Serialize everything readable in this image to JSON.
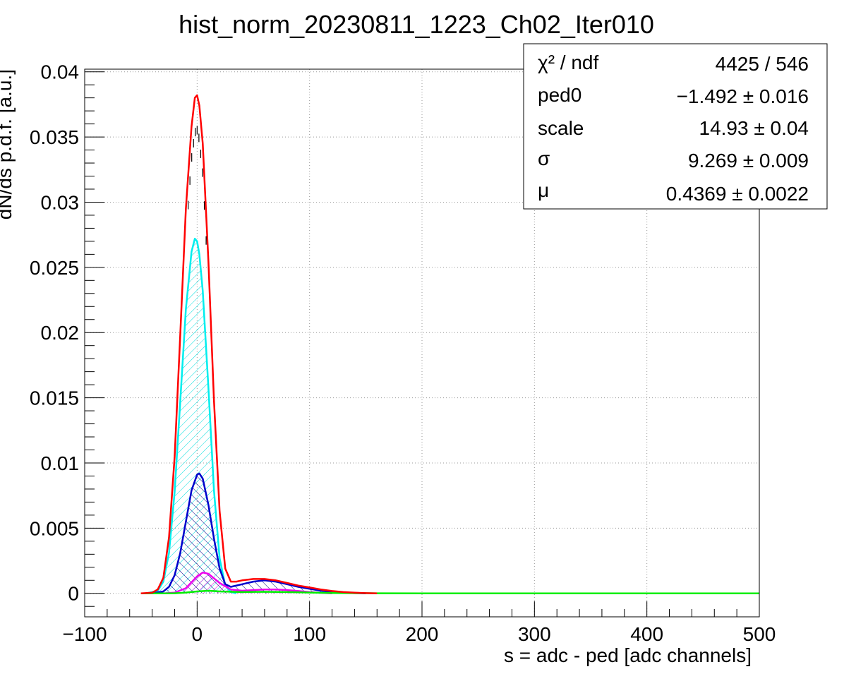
{
  "chart_data": {
    "type": "line",
    "title": "hist_norm_20230811_1223_Ch02_Iter010",
    "xlabel": "s = adc - ped [adc channels]",
    "ylabel": "dN/ds p.d.f. [a.u.]",
    "xlim": [
      -100,
      500
    ],
    "ylim": [
      -0.0018,
      0.0402
    ],
    "grid": true,
    "xticks": [
      -100,
      0,
      100,
      200,
      300,
      400,
      500
    ],
    "xtick_labels": [
      "−100",
      "0",
      "100",
      "200",
      "300",
      "400",
      "500"
    ],
    "yticks": [
      0,
      0.005,
      0.01,
      0.015,
      0.02,
      0.025,
      0.03,
      0.035,
      0.04
    ],
    "ytick_labels": [
      "0",
      "0.005",
      "0.01",
      "0.015",
      "0.02",
      "0.025",
      "0.03",
      "0.035",
      "0.04"
    ],
    "series": [
      {
        "color": "#ff0000",
        "x": [
          -50,
          -40,
          -35,
          -30,
          -25,
          -20,
          -15,
          -10,
          -5,
          -2,
          0,
          2,
          5,
          10,
          15,
          20,
          25,
          30,
          35,
          40,
          50,
          60,
          70,
          80,
          90,
          100,
          110,
          120,
          130,
          140,
          150,
          160
        ],
        "y": [
          0,
          5e-05,
          0.0003,
          0.0012,
          0.0043,
          0.0105,
          0.0198,
          0.0295,
          0.0358,
          0.038,
          0.0382,
          0.0374,
          0.0345,
          0.0255,
          0.0148,
          0.0063,
          0.0019,
          0.0009,
          0.0009,
          0.001,
          0.0011,
          0.0011,
          0.001,
          0.0008,
          0.0006,
          0.00045,
          0.0003,
          0.00018,
          0.0001,
          5e-05,
          2e-05,
          0
        ]
      },
      {
        "color": "#00eeee",
        "x": [
          -45,
          -35,
          -30,
          -25,
          -20,
          -15,
          -10,
          -5,
          -2,
          0,
          2,
          5,
          10,
          15,
          20,
          25,
          30,
          35
        ],
        "y": [
          0,
          0.0002,
          0.0009,
          0.0031,
          0.0078,
          0.0147,
          0.0218,
          0.0262,
          0.0272,
          0.027,
          0.026,
          0.0232,
          0.0158,
          0.0079,
          0.0027,
          0.0006,
          0.0001,
          0
        ]
      },
      {
        "color": "#0000cc",
        "x": [
          -40,
          -30,
          -25,
          -20,
          -15,
          -10,
          -5,
          0,
          2,
          5,
          10,
          15,
          20,
          25,
          30,
          40,
          50,
          60,
          70,
          80,
          90,
          100,
          110,
          120,
          130,
          140,
          150
        ],
        "y": [
          0,
          0.00015,
          0.0005,
          0.0014,
          0.0031,
          0.0055,
          0.0079,
          0.0091,
          0.0092,
          0.0088,
          0.0068,
          0.0042,
          0.0019,
          0.0007,
          0.0005,
          0.0007,
          0.0009,
          0.001,
          0.0009,
          0.0007,
          0.0005,
          0.00035,
          0.0002,
          0.00011,
          5e-05,
          2e-05,
          0
        ]
      },
      {
        "color": "#ee00ee",
        "x": [
          -30,
          -20,
          -10,
          0,
          5,
          10,
          20,
          30,
          40,
          50,
          60,
          70,
          80,
          90,
          100,
          110,
          120
        ],
        "y": [
          0,
          5e-05,
          0.0004,
          0.0013,
          0.0016,
          0.0015,
          0.0008,
          0.0003,
          0.0002,
          0.00025,
          0.0003,
          0.0003,
          0.00025,
          0.00018,
          0.0001,
          4e-05,
          0
        ]
      },
      {
        "color": "#00ee00",
        "x": [
          -50,
          -20,
          -10,
          0,
          10,
          20,
          40,
          60,
          80,
          100,
          120,
          160,
          200,
          300,
          400,
          500
        ],
        "y": [
          0,
          1e-05,
          6e-05,
          0.00015,
          0.0002,
          0.00015,
          0.0001,
          0.00012,
          0.0001,
          6e-05,
          3e-05,
          1e-05,
          0,
          0,
          0,
          0
        ]
      }
    ]
  },
  "stats": {
    "rows": [
      {
        "label": "χ² / ndf",
        "value": "4425 / 546"
      },
      {
        "label": "ped0",
        "value": "−1.492 ± 0.016"
      },
      {
        "label": "scale",
        "value": "14.93 ± 0.04"
      },
      {
        "label": "σ",
        "value": "9.269 ± 0.009"
      },
      {
        "label": "μ",
        "value": "0.4369 ± 0.0022"
      }
    ]
  }
}
